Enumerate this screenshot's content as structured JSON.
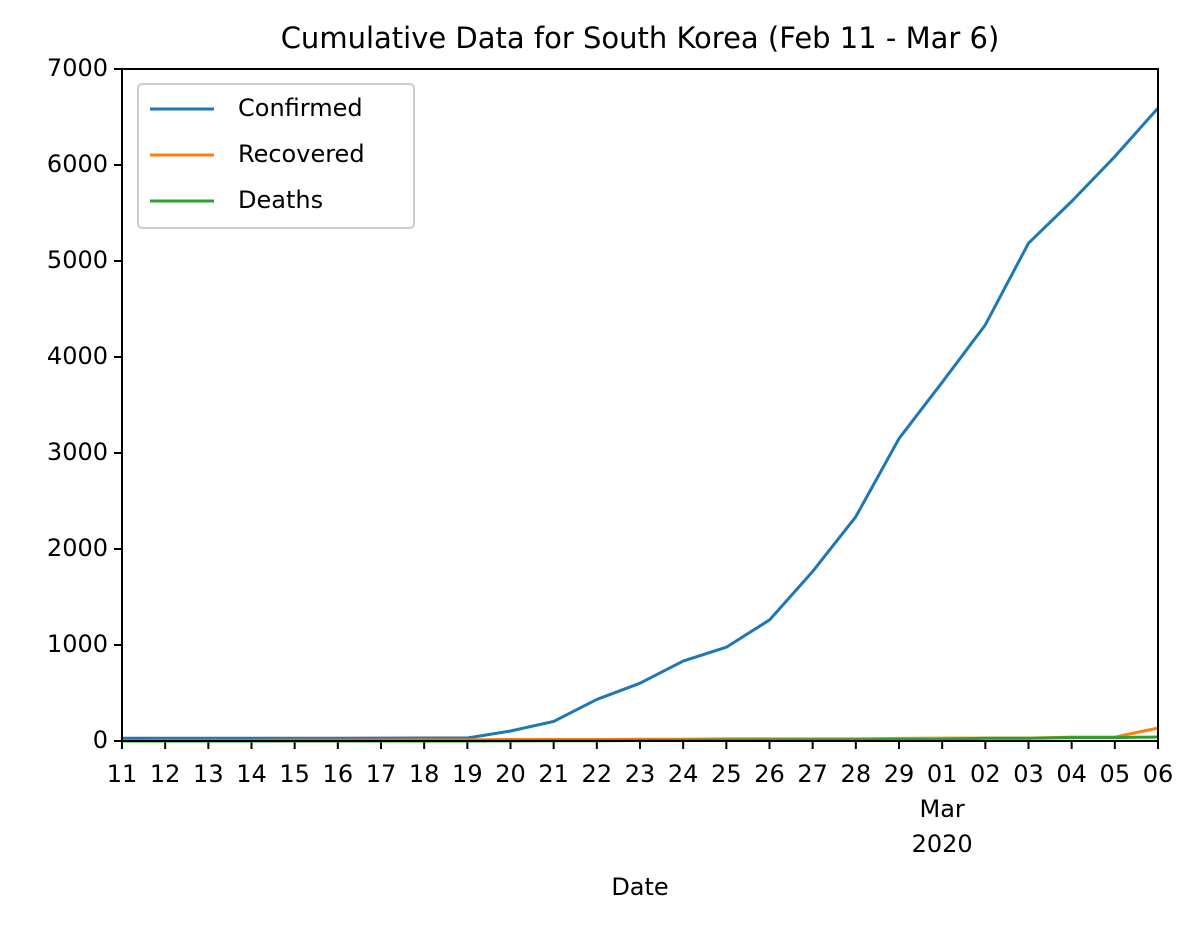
{
  "chart_data": {
    "type": "line",
    "title": "Cumulative Data for South Korea (Feb 11 - Mar 6)",
    "x_label": "Date",
    "categories": [
      "11",
      "12",
      "13",
      "14",
      "15",
      "16",
      "17",
      "18",
      "19",
      "20",
      "21",
      "22",
      "23",
      "24",
      "25",
      "26",
      "27",
      "28",
      "29",
      "01",
      "02",
      "03",
      "04",
      "05",
      "06"
    ],
    "month_labels": [
      null,
      null,
      null,
      null,
      null,
      null,
      null,
      null,
      null,
      null,
      null,
      null,
      null,
      null,
      null,
      null,
      null,
      null,
      null,
      "Mar",
      null,
      null,
      null,
      null,
      null
    ],
    "year_labels": [
      null,
      null,
      null,
      null,
      null,
      null,
      null,
      null,
      null,
      null,
      null,
      null,
      null,
      null,
      null,
      null,
      null,
      null,
      null,
      "2020",
      null,
      null,
      null,
      null,
      null
    ],
    "series": [
      {
        "name": "Confirmed",
        "color": "#1f77b4",
        "values": [
          28,
          28,
          28,
          28,
          28,
          29,
          30,
          31,
          31,
          104,
          204,
          433,
          602,
          833,
          977,
          1261,
          1766,
          2337,
          3150,
          3736,
          4335,
          5186,
          5621,
          6088,
          6593
        ]
      },
      {
        "name": "Recovered",
        "color": "#ff7f0e",
        "values": [
          3,
          7,
          7,
          7,
          9,
          9,
          10,
          12,
          12,
          16,
          16,
          16,
          18,
          18,
          22,
          22,
          22,
          22,
          27,
          30,
          30,
          30,
          41,
          41,
          135
        ]
      },
      {
        "name": "Deaths",
        "color": "#2ca02c",
        "values": [
          0,
          0,
          0,
          0,
          0,
          0,
          0,
          0,
          0,
          1,
          2,
          2,
          6,
          8,
          10,
          12,
          13,
          13,
          16,
          17,
          28,
          28,
          35,
          35,
          42
        ]
      }
    ],
    "ylim": [
      0,
      7000
    ],
    "yticks": [
      0,
      1000,
      2000,
      3000,
      4000,
      5000,
      6000,
      7000
    ],
    "grid": false,
    "legend": "upper left"
  }
}
